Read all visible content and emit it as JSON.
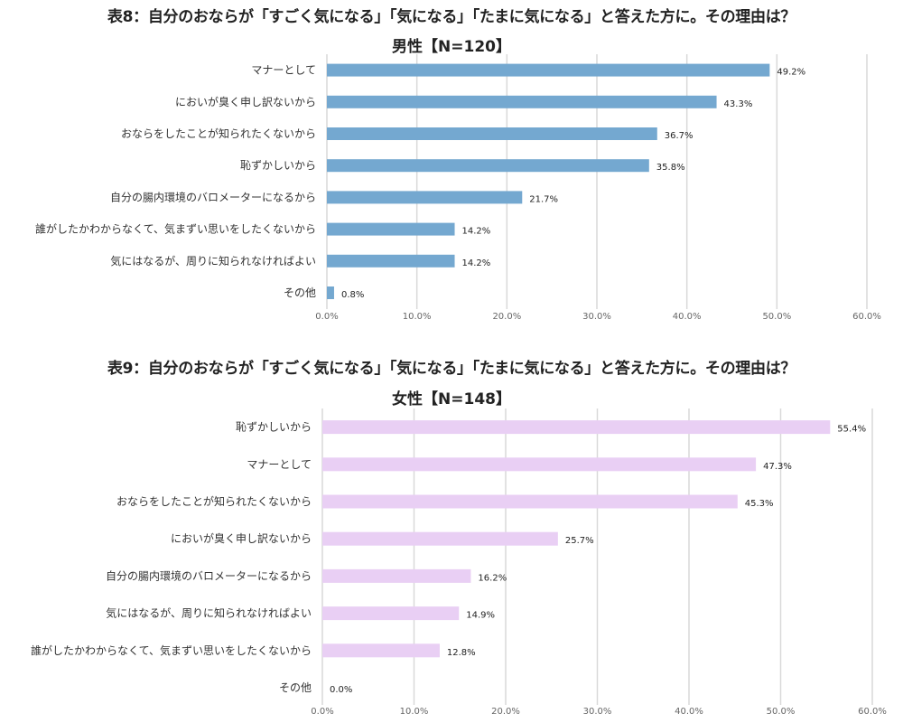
{
  "chart_data": [
    {
      "type": "bar",
      "orientation": "horizontal",
      "title": "表8：自分のおならが「すごく気になる」「気になる」「たまに気になる」と答えた方に。その理由は？",
      "subtitle": "男性【N=120】",
      "categories": [
        "マナーとして",
        "においが臭く申し訳ないから",
        "おならをしたことが知られたくないから",
        "恥ずかしいから",
        "自分の腸内環境のバロメーターになるから",
        "誰がしたかわからなくて、気まずい思いをしたくないから",
        "気にはなるが、周りに知られなければよい",
        "その他"
      ],
      "values": [
        49.2,
        43.3,
        36.7,
        35.8,
        21.7,
        14.2,
        14.2,
        0.8
      ],
      "value_labels": [
        "49.2%",
        "43.3%",
        "36.7%",
        "35.8%",
        "21.7%",
        "14.2%",
        "14.2%",
        "0.8%"
      ],
      "xlim": [
        0,
        60
      ],
      "ticks": [
        "0.0%",
        "10.0%",
        "20.0%",
        "30.0%",
        "40.0%",
        "50.0%",
        "60.0%"
      ],
      "color": "#74a8d0",
      "grid": true
    },
    {
      "type": "bar",
      "orientation": "horizontal",
      "title": "表9：自分のおならが「すごく気になる」「気になる」「たまに気になる」と答えた方に。その理由は？",
      "subtitle": "女性【N=148】",
      "categories": [
        "恥ずかしいから",
        "マナーとして",
        "おならをしたことが知られたくないから",
        "においが臭く申し訳ないから",
        "自分の腸内環境のバロメーターになるから",
        "気にはなるが、周りに知られなければよい",
        "誰がしたかわからなくて、気まずい思いをしたくないから",
        "その他"
      ],
      "values": [
        55.4,
        47.3,
        45.3,
        25.7,
        16.2,
        14.9,
        12.8,
        0.0
      ],
      "value_labels": [
        "55.4%",
        "47.3%",
        "45.3%",
        "25.7%",
        "16.2%",
        "14.9%",
        "12.8%",
        "0.0%"
      ],
      "xlim": [
        0,
        60
      ],
      "ticks": [
        "0.0%",
        "10.0%",
        "20.0%",
        "30.0%",
        "40.0%",
        "50.0%",
        "60.0%"
      ],
      "color": "#e9cff4",
      "grid": true
    }
  ]
}
